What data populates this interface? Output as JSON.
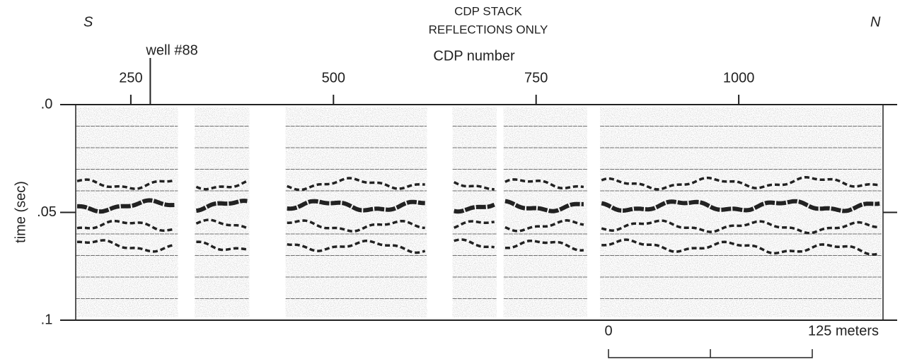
{
  "chart_data": {
    "type": "seismic",
    "title": [
      "CDP STACK",
      "REFLECTIONS ONLY"
    ],
    "direction_left": "S",
    "direction_right": "N",
    "xlabel": "CDP number",
    "ylabel": "time (sec)",
    "xlim": [
      182,
      1178
    ],
    "xticks": [
      250,
      500,
      750,
      1000
    ],
    "ylim": [
      0,
      0.1
    ],
    "yticks": [
      {
        "value": 0,
        "label": ".0"
      },
      {
        "value": 0.05,
        "label": ".05"
      },
      {
        "value": 0.1,
        "label": ".1"
      }
    ],
    "minor_yticks": [
      0.01,
      0.02,
      0.03,
      0.04,
      0.06,
      0.07,
      0.08,
      0.09
    ],
    "well": {
      "label": "well #88",
      "x": 274
    },
    "panels": [
      [
        182,
        308
      ],
      [
        329,
        396
      ],
      [
        441,
        615
      ],
      [
        647,
        701
      ],
      [
        710,
        813
      ],
      [
        829,
        1176
      ]
    ],
    "scale_bar": {
      "start_label": "0",
      "end_label": "125 meters"
    }
  }
}
